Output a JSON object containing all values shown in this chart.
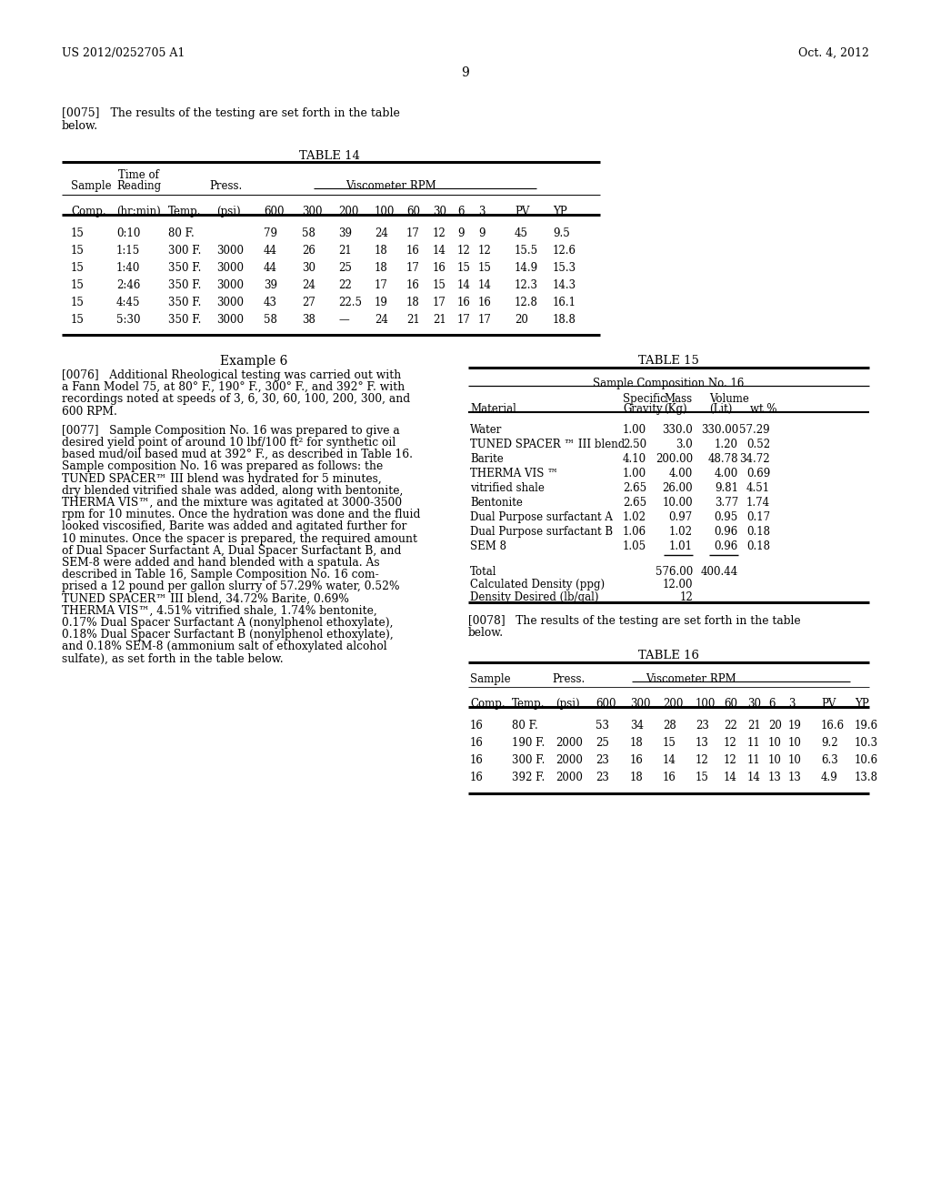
{
  "header_left": "US 2012/0252705 A1",
  "header_right": "Oct. 4, 2012",
  "page_number": "9",
  "para_0075_line1": "[0075]   The results of the testing are set forth in the table",
  "para_0075_line2": "below.",
  "table14_title": "TABLE 14",
  "table14_col_labels": [
    "Comp.",
    "(hr:min)",
    "Temp.",
    "(psi)",
    "600",
    "300",
    "200",
    "100",
    "60",
    "30",
    "6",
    "3",
    "PV",
    "YP"
  ],
  "table14_data": [
    [
      "15",
      "0:10",
      "80 F.",
      "",
      "79",
      "58",
      "39",
      "24",
      "17",
      "12",
      "9",
      "9",
      "45",
      "9.5"
    ],
    [
      "15",
      "1:15",
      "300 F.",
      "3000",
      "44",
      "26",
      "21",
      "18",
      "16",
      "14",
      "12",
      "12",
      "15.5",
      "12.6"
    ],
    [
      "15",
      "1:40",
      "350 F.",
      "3000",
      "44",
      "30",
      "25",
      "18",
      "17",
      "16",
      "15",
      "15",
      "14.9",
      "15.3"
    ],
    [
      "15",
      "2:46",
      "350 F.",
      "3000",
      "39",
      "24",
      "22",
      "17",
      "16",
      "15",
      "14",
      "14",
      "12.3",
      "14.3"
    ],
    [
      "15",
      "4:45",
      "350 F.",
      "3000",
      "43",
      "27",
      "22.5",
      "19",
      "18",
      "17",
      "16",
      "16",
      "12.8",
      "16.1"
    ],
    [
      "15",
      "5:30",
      "350 F.",
      "3000",
      "58",
      "38",
      "—",
      "24",
      "21",
      "21",
      "17",
      "17",
      "20",
      "18.8"
    ]
  ],
  "example6_title": "Example 6",
  "para_0076_lines": [
    "[0076]   Additional Rheological testing was carried out with",
    "a Fann Model 75, at 80° F., 190° F., 300° F., and 392° F. with",
    "recordings noted at speeds of 3, 6, 30, 60, 100, 200, 300, and",
    "600 RPM."
  ],
  "para_0077_lines": [
    "[0077]   Sample Composition No. 16 was prepared to give a",
    "desired yield point of around 10 lbf/100 ft² for synthetic oil",
    "based mud/oil based mud at 392° F., as described in Table 16.",
    "Sample composition No. 16 was prepared as follows: the",
    "TUNED SPACER™ III blend was hydrated for 5 minutes,",
    "dry blended vitrified shale was added, along with bentonite,",
    "THERMA VIS™, and the mixture was agitated at 3000-3500",
    "rpm for 10 minutes. Once the hydration was done and the fluid",
    "looked viscosified, Barite was added and agitated further for",
    "10 minutes. Once the spacer is prepared, the required amount",
    "of Dual Spacer Surfactant A, Dual Spacer Surfactant B, and",
    "SEM-8 were added and hand blended with a spatula. As",
    "described in Table 16, Sample Composition No. 16 com-",
    "prised a 12 pound per gallon slurry of 57.29% water, 0.52%",
    "TUNED SPACER™ III blend, 34.72% Barite, 0.69%",
    "THERMA VIS™, 4.51% vitrified shale, 1.74% bentonite,",
    "0.17% Dual Spacer Surfactant A (nonylphenol ethoxylate),",
    "0.18% Dual Spacer Surfactant B (nonylphenol ethoxylate),",
    "and 0.18% SEM-8 (ammonium salt of ethoxylated alcohol",
    "sulfate), as set forth in the table below."
  ],
  "table15_title": "TABLE 15",
  "table15_subtitle": "Sample Composition No. 16",
  "table15_data": [
    [
      "Water",
      "1.00",
      "330.0",
      "330.00",
      "57.29"
    ],
    [
      "TUNED SPACER ™ III blend",
      "2.50",
      "3.0",
      "1.20",
      "0.52"
    ],
    [
      "Barite",
      "4.10",
      "200.00",
      "48.78",
      "34.72"
    ],
    [
      "THERMA VIS ™",
      "1.00",
      "4.00",
      "4.00",
      "0.69"
    ],
    [
      "vitrified shale",
      "2.65",
      "26.00",
      "9.81",
      "4.51"
    ],
    [
      "Bentonite",
      "2.65",
      "10.00",
      "3.77",
      "1.74"
    ],
    [
      "Dual Purpose surfactant A",
      "1.02",
      "0.97",
      "0.95",
      "0.17"
    ],
    [
      "Dual Purpose surfactant B",
      "1.06",
      "1.02",
      "0.96",
      "0.18"
    ],
    [
      "SEM 8",
      "1.05",
      "1.01",
      "0.96",
      "0.18"
    ]
  ],
  "para_0078_line1": "[0078]   The results of the testing are set forth in the table",
  "para_0078_line2": "below.",
  "table16_title": "TABLE 16",
  "table16_col_labels": [
    "Comp.",
    "Temp.",
    "(psi)",
    "600",
    "300",
    "200",
    "100",
    "60",
    "30",
    "6",
    "3",
    "PV",
    "YP"
  ],
  "table16_data": [
    [
      "16",
      "80 F.",
      "",
      "53",
      "34",
      "28",
      "23",
      "22",
      "21",
      "20",
      "19",
      "16.6",
      "19.6"
    ],
    [
      "16",
      "190 F.",
      "2000",
      "25",
      "18",
      "15",
      "13",
      "12",
      "11",
      "10",
      "10",
      "9.2",
      "10.3"
    ],
    [
      "16",
      "300 F.",
      "2000",
      "23",
      "16",
      "14",
      "12",
      "12",
      "11",
      "10",
      "10",
      "6.3",
      "10.6"
    ],
    [
      "16",
      "392 F.",
      "2000",
      "23",
      "18",
      "16",
      "15",
      "14",
      "14",
      "13",
      "13",
      "4.9",
      "13.8"
    ]
  ],
  "bg_color": "#ffffff",
  "text_color": "#000000"
}
